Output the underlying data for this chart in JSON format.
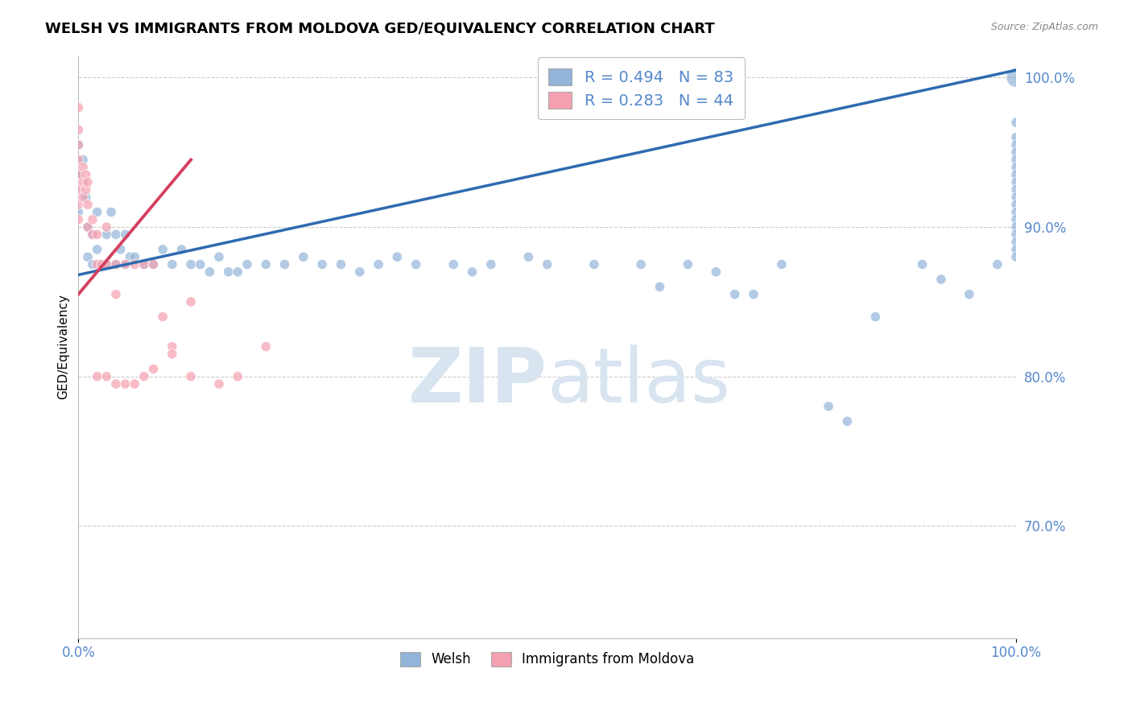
{
  "title": "WELSH VS IMMIGRANTS FROM MOLDOVA GED/EQUIVALENCY CORRELATION CHART",
  "source": "Source: ZipAtlas.com",
  "ylabel": "GED/Equivalency",
  "xlim": [
    0.0,
    1.0
  ],
  "ylim": [
    0.625,
    1.015
  ],
  "ytick_vals": [
    0.7,
    0.8,
    0.9,
    1.0
  ],
  "ytick_labels": [
    "70.0%",
    "80.0%",
    "90.0%",
    "100.0%"
  ],
  "legend_entries": [
    "Welsh",
    "Immigrants from Moldova"
  ],
  "R_welsh": 0.494,
  "N_welsh": 83,
  "R_moldova": 0.283,
  "N_moldova": 44,
  "blue_color": "#92B4D8",
  "pink_color": "#F4A0B0",
  "line_blue": "#2E6BB0",
  "line_pink": "#D44060",
  "background_color": "#FFFFFF",
  "grid_color": "#CCCCCC",
  "tick_color": "#5588CC",
  "watermark_color": "#D8E4F0",
  "welsh_x": [
    0.0,
    0.0,
    0.0,
    0.005,
    0.008,
    0.01,
    0.01,
    0.015,
    0.015,
    0.02,
    0.02,
    0.025,
    0.03,
    0.03,
    0.035,
    0.04,
    0.04,
    0.045,
    0.05,
    0.05,
    0.055,
    0.06,
    0.07,
    0.08,
    0.09,
    0.1,
    0.11,
    0.12,
    0.13,
    0.14,
    0.15,
    0.16,
    0.17,
    0.18,
    0.2,
    0.22,
    0.24,
    0.26,
    0.28,
    0.3,
    0.32,
    0.34,
    0.36,
    0.4,
    0.42,
    0.44,
    0.48,
    0.5,
    0.55,
    0.6,
    0.62,
    0.65,
    0.68,
    0.7,
    0.72,
    0.75,
    0.8,
    0.82,
    0.85,
    0.9,
    0.92,
    0.95,
    0.98,
    1.0,
    1.0,
    1.0,
    1.0,
    1.0,
    1.0,
    1.0,
    1.0,
    1.0,
    1.0,
    1.0,
    1.0,
    1.0,
    1.0,
    1.0,
    1.0,
    1.0,
    1.0,
    1.0
  ],
  "welsh_y": [
    0.955,
    0.935,
    0.91,
    0.945,
    0.92,
    0.9,
    0.88,
    0.895,
    0.875,
    0.91,
    0.885,
    0.875,
    0.895,
    0.875,
    0.91,
    0.895,
    0.875,
    0.885,
    0.895,
    0.875,
    0.88,
    0.88,
    0.875,
    0.875,
    0.885,
    0.875,
    0.885,
    0.875,
    0.875,
    0.87,
    0.88,
    0.87,
    0.87,
    0.875,
    0.875,
    0.875,
    0.88,
    0.875,
    0.875,
    0.87,
    0.875,
    0.88,
    0.875,
    0.875,
    0.87,
    0.875,
    0.88,
    0.875,
    0.875,
    0.875,
    0.86,
    0.875,
    0.87,
    0.855,
    0.855,
    0.875,
    0.78,
    0.77,
    0.84,
    0.875,
    0.865,
    0.855,
    0.875,
    0.97,
    0.96,
    0.955,
    0.95,
    0.945,
    0.94,
    0.935,
    0.93,
    0.925,
    0.92,
    0.915,
    0.91,
    0.905,
    0.9,
    0.895,
    0.89,
    0.885,
    0.88,
    1.0
  ],
  "welsh_size": [
    80,
    80,
    80,
    80,
    80,
    80,
    80,
    80,
    80,
    80,
    80,
    80,
    80,
    80,
    80,
    80,
    80,
    80,
    80,
    80,
    80,
    80,
    80,
    80,
    80,
    80,
    80,
    80,
    80,
    80,
    80,
    80,
    80,
    80,
    80,
    80,
    80,
    80,
    80,
    80,
    80,
    80,
    80,
    80,
    80,
    80,
    80,
    80,
    80,
    80,
    80,
    80,
    80,
    80,
    80,
    80,
    80,
    80,
    80,
    80,
    80,
    80,
    80,
    80,
    80,
    80,
    80,
    80,
    80,
    80,
    80,
    80,
    80,
    80,
    80,
    80,
    80,
    80,
    80,
    80,
    80,
    300
  ],
  "moldova_x": [
    0.0,
    0.0,
    0.0,
    0.0,
    0.0,
    0.0,
    0.0,
    0.0,
    0.005,
    0.005,
    0.005,
    0.008,
    0.008,
    0.01,
    0.01,
    0.01,
    0.015,
    0.015,
    0.02,
    0.02,
    0.025,
    0.03,
    0.03,
    0.04,
    0.04,
    0.05,
    0.06,
    0.07,
    0.08,
    0.09,
    0.1,
    0.12,
    0.02,
    0.03,
    0.04,
    0.05,
    0.06,
    0.07,
    0.08,
    0.1,
    0.12,
    0.15,
    0.17,
    0.2
  ],
  "moldova_y": [
    0.98,
    0.965,
    0.955,
    0.945,
    0.935,
    0.925,
    0.915,
    0.905,
    0.94,
    0.93,
    0.92,
    0.935,
    0.925,
    0.93,
    0.915,
    0.9,
    0.905,
    0.895,
    0.895,
    0.875,
    0.875,
    0.9,
    0.875,
    0.875,
    0.855,
    0.875,
    0.875,
    0.875,
    0.875,
    0.84,
    0.82,
    0.85,
    0.8,
    0.8,
    0.795,
    0.795,
    0.795,
    0.8,
    0.805,
    0.815,
    0.8,
    0.795,
    0.8,
    0.82
  ],
  "moldova_size": [
    80,
    80,
    80,
    80,
    80,
    80,
    80,
    80,
    80,
    80,
    80,
    80,
    80,
    80,
    80,
    80,
    80,
    80,
    80,
    80,
    80,
    80,
    80,
    80,
    80,
    80,
    80,
    80,
    80,
    80,
    80,
    80,
    80,
    80,
    80,
    80,
    80,
    80,
    80,
    80,
    80,
    80,
    80,
    80
  ],
  "blue_line_x0": 0.0,
  "blue_line_y0": 0.868,
  "blue_line_x1": 1.0,
  "blue_line_y1": 1.005,
  "pink_line_x0": 0.0,
  "pink_line_y0": 0.855,
  "pink_line_x1": 0.12,
  "pink_line_y1": 0.945
}
